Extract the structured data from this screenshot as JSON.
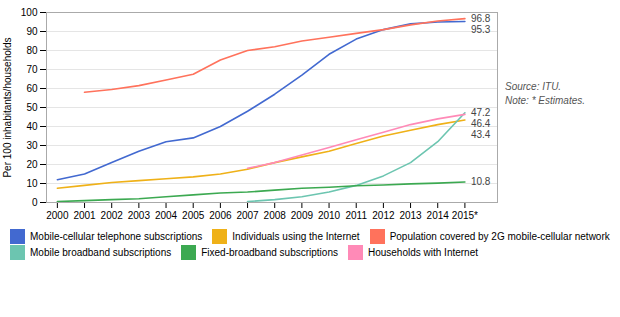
{
  "chart_data": {
    "type": "line",
    "x": [
      2000,
      2001,
      2002,
      2003,
      2004,
      2005,
      2006,
      2007,
      2008,
      2009,
      2010,
      2011,
      2012,
      2013,
      2014,
      2015
    ],
    "xlim": [
      1999.6,
      2016.2
    ],
    "xticks": [
      2000,
      2001,
      2002,
      2003,
      2004,
      2005,
      2006,
      2007,
      2008,
      2009,
      2010,
      2011,
      2012,
      2013,
      2014,
      {
        "value": 2015,
        "label": "2015*"
      }
    ],
    "ylim": [
      0,
      100
    ],
    "yticks": [
      0,
      10,
      20,
      30,
      40,
      50,
      60,
      70,
      80,
      90,
      100
    ],
    "ylabel": "Per 100 inhabitants/households",
    "grid": true,
    "legend": "bottom",
    "annotations": [
      "Source: ITU.",
      "Note: * Estimates."
    ],
    "series": [
      {
        "name": "Mobile-cellular telephone subscriptions",
        "values": [
          12.0,
          15.0,
          21.0,
          27.0,
          32.0,
          34.0,
          40.0,
          48.0,
          57.0,
          67.0,
          78.0,
          86.0,
          91.0,
          94.0,
          95.0,
          95.3
        ],
        "end_label": "95.3"
      },
      {
        "name": "Individuals using the Internet",
        "values": [
          7.5,
          9.0,
          10.5,
          11.5,
          12.5,
          13.5,
          15.0,
          17.5,
          21.0,
          24.0,
          27.0,
          31.0,
          35.0,
          38.0,
          41.0,
          43.4
        ],
        "end_label": "43.4"
      },
      {
        "name": "Population covered by 2G mobile-cellular network",
        "values": [
          null,
          58.0,
          59.5,
          61.5,
          64.5,
          67.5,
          75.0,
          80.0,
          82.0,
          85.0,
          87.0,
          89.0,
          91.0,
          93.5,
          95.5,
          96.8
        ],
        "end_label": "96.8"
      },
      {
        "name": "Mobile broadband subscriptions",
        "values": [
          null,
          null,
          null,
          null,
          null,
          null,
          null,
          0.5,
          1.5,
          3.0,
          5.5,
          9.0,
          14.0,
          21.0,
          32.0,
          47.2
        ],
        "end_label": "47.2"
      },
      {
        "name": "Fixed-broadband subscriptions",
        "values": [
          0.5,
          1.0,
          1.5,
          2.0,
          3.0,
          4.0,
          5.0,
          5.5,
          6.5,
          7.5,
          8.0,
          8.8,
          9.2,
          9.8,
          10.2,
          10.8
        ],
        "end_label": "10.8"
      },
      {
        "name": "Households with Internet",
        "values": [
          null,
          null,
          null,
          null,
          null,
          null,
          null,
          18.0,
          21.0,
          25.0,
          29.0,
          33.0,
          37.0,
          41.0,
          44.0,
          46.4
        ],
        "end_label": "46.4"
      }
    ]
  }
}
